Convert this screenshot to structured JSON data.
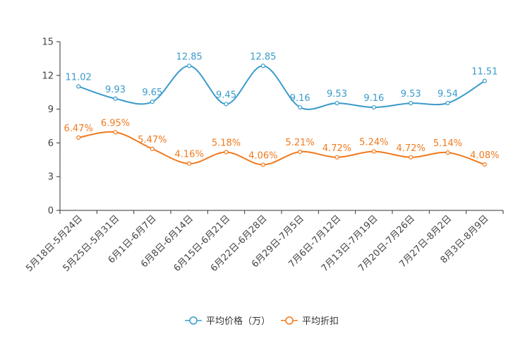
{
  "chart_data": {
    "type": "line",
    "title": "",
    "xlabel": "",
    "ylabel": "",
    "ylim": [
      0,
      15
    ],
    "yticks": [
      "0",
      "3",
      "6",
      "9",
      "12",
      "15"
    ],
    "grid": false,
    "legend_position": "bottom-center",
    "categories": [
      "5月18日-5月24日",
      "5月25日-5月31日",
      "6月1日-6月7日",
      "6月8日-6月14日",
      "6月15日-6月21日",
      "6月22日-6月28日",
      "6月29日-7月5日",
      "7月6日-7月12日",
      "7月13日-7月19日",
      "7月20日-7月26日",
      "7月27日-8月2日",
      "8月3日-8月9日"
    ],
    "series": [
      {
        "name": "平均价格（万）",
        "color": "#3a9bcb",
        "values": [
          11.02,
          9.93,
          9.65,
          12.85,
          9.45,
          12.85,
          9.16,
          9.53,
          9.16,
          9.53,
          9.54,
          11.51
        ],
        "labels": [
          "11.02",
          "9.93",
          "9.65",
          "12.85",
          "9.45",
          "12.85",
          "9.16",
          "9.53",
          "9.16",
          "9.53",
          "9.54",
          "11.51"
        ]
      },
      {
        "name": "平均折扣",
        "color": "#f07a1e",
        "values": [
          6.47,
          6.95,
          5.47,
          4.16,
          5.18,
          4.06,
          5.21,
          4.72,
          5.24,
          4.72,
          5.14,
          4.08
        ],
        "labels": [
          "6.47%",
          "6.95%",
          "5.47%",
          "4.16%",
          "5.18%",
          "4.06%",
          "5.21%",
          "4.72%",
          "5.24%",
          "4.72%",
          "5.14%",
          "4.08%"
        ]
      }
    ]
  }
}
